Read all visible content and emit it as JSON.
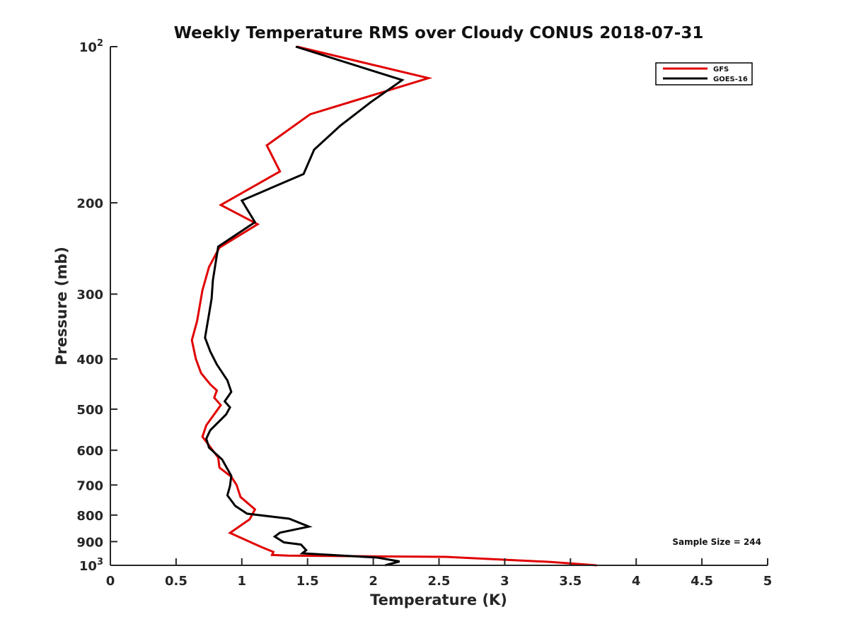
{
  "chart_data": {
    "type": "line",
    "title": "Weekly Temperature RMS over Cloudy CONUS 2018-07-31",
    "xlabel": "Temperature (K)",
    "ylabel": "Pressure (mb)",
    "xlim": [
      0,
      5
    ],
    "ylim": [
      1000,
      100
    ],
    "yscale": "log",
    "y_reversed": true,
    "grid": false,
    "legend_position": "top-right",
    "x_ticks": [
      "0",
      "0.5",
      "1",
      "1.5",
      "2",
      "2.5",
      "3",
      "3.5",
      "4",
      "4.5",
      "5"
    ],
    "y_ticks": [
      {
        "value": 100,
        "base": "10",
        "exp": "2"
      },
      {
        "value": 200,
        "label": "200"
      },
      {
        "value": 300,
        "label": "300"
      },
      {
        "value": 400,
        "label": "400"
      },
      {
        "value": 500,
        "label": "500"
      },
      {
        "value": 600,
        "label": "600"
      },
      {
        "value": 700,
        "label": "700"
      },
      {
        "value": 800,
        "label": "800"
      },
      {
        "value": 900,
        "label": "900"
      },
      {
        "value": 1000,
        "base": "10",
        "exp": "3"
      }
    ],
    "annotation": "Sample Size = 244",
    "series": [
      {
        "name": "GFS",
        "color": "#e00000",
        "points": [
          [
            1.42,
            100
          ],
          [
            2.42,
            115
          ],
          [
            1.52,
            135
          ],
          [
            1.19,
            155
          ],
          [
            1.29,
            174
          ],
          [
            0.84,
            202
          ],
          [
            1.12,
            220
          ],
          [
            0.83,
            244
          ],
          [
            0.75,
            266
          ],
          [
            0.7,
            295
          ],
          [
            0.66,
            338
          ],
          [
            0.62,
            368
          ],
          [
            0.65,
            400
          ],
          [
            0.69,
            426
          ],
          [
            0.76,
            448
          ],
          [
            0.81,
            460
          ],
          [
            0.79,
            475
          ],
          [
            0.84,
            491
          ],
          [
            0.73,
            537
          ],
          [
            0.7,
            565
          ],
          [
            0.75,
            587
          ],
          [
            0.82,
            620
          ],
          [
            0.83,
            648
          ],
          [
            0.92,
            675
          ],
          [
            0.96,
            700
          ],
          [
            0.99,
            738
          ],
          [
            1.1,
            780
          ],
          [
            1.06,
            815
          ],
          [
            0.91,
            866
          ],
          [
            1.14,
            920
          ],
          [
            1.24,
            942
          ],
          [
            1.23,
            955
          ],
          [
            1.35,
            958
          ],
          [
            2.55,
            963
          ],
          [
            3.35,
            985
          ],
          [
            3.7,
            1000
          ]
        ]
      },
      {
        "name": "GOES-16",
        "color": "#000000",
        "points": [
          [
            1.41,
            100
          ],
          [
            2.22,
            116
          ],
          [
            1.98,
            128
          ],
          [
            1.75,
            142
          ],
          [
            1.55,
            158
          ],
          [
            1.47,
            176
          ],
          [
            1.0,
            198
          ],
          [
            1.1,
            218
          ],
          [
            0.82,
            243
          ],
          [
            0.78,
            282
          ],
          [
            0.77,
            306
          ],
          [
            0.75,
            328
          ],
          [
            0.72,
            364
          ],
          [
            0.76,
            387
          ],
          [
            0.81,
            410
          ],
          [
            0.89,
            440
          ],
          [
            0.92,
            463
          ],
          [
            0.87,
            483
          ],
          [
            0.91,
            496
          ],
          [
            0.88,
            512
          ],
          [
            0.76,
            549
          ],
          [
            0.73,
            570
          ],
          [
            0.75,
            593
          ],
          [
            0.85,
            625
          ],
          [
            0.92,
            672
          ],
          [
            0.91,
            703
          ],
          [
            0.89,
            733
          ],
          [
            0.95,
            768
          ],
          [
            1.04,
            795
          ],
          [
            1.36,
            813
          ],
          [
            1.51,
            842
          ],
          [
            1.29,
            865
          ],
          [
            1.25,
            880
          ],
          [
            1.32,
            903
          ],
          [
            1.45,
            912
          ],
          [
            1.49,
            935
          ],
          [
            1.46,
            948
          ],
          [
            2.03,
            966
          ],
          [
            2.2,
            983
          ],
          [
            2.09,
            1000
          ]
        ]
      }
    ]
  }
}
